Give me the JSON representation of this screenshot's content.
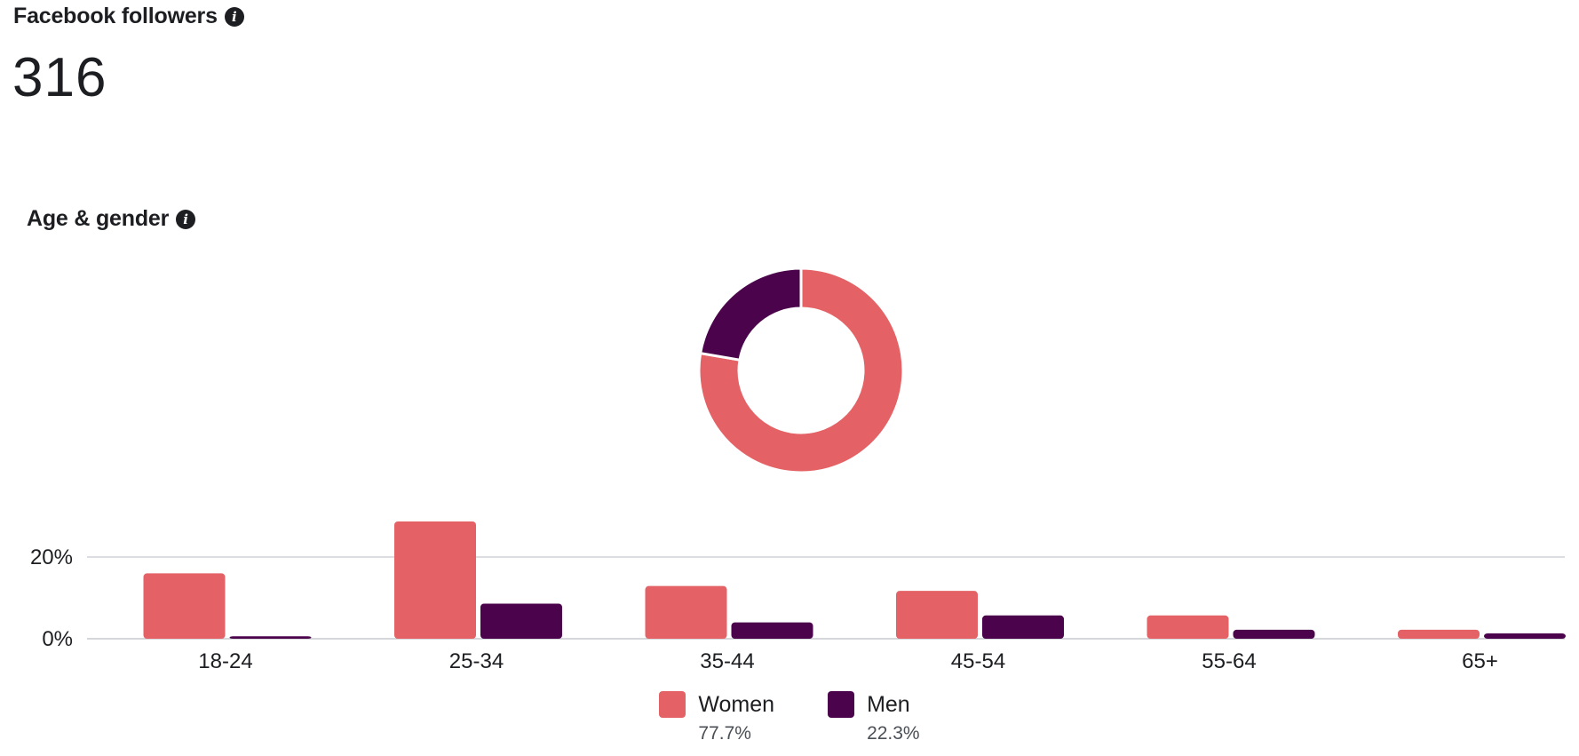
{
  "followers": {
    "title": "Facebook followers",
    "count": "316",
    "info_icon": "info-icon"
  },
  "age_gender": {
    "title": "Age & gender",
    "info_icon": "info-icon"
  },
  "colors": {
    "women": "#e46265",
    "men": "#4b044b",
    "grid": "#d0d3d8",
    "axis": "#c7cacf"
  },
  "chart_data": [
    {
      "type": "pie",
      "variant": "donut",
      "labels": [
        "Women",
        "Men"
      ],
      "values": [
        77.7,
        22.3
      ]
    },
    {
      "type": "bar",
      "categories": [
        "18-24",
        "25-34",
        "35-44",
        "45-54",
        "55-64",
        "65+"
      ],
      "series": [
        {
          "name": "Women",
          "values": [
            16,
            28.7,
            12.9,
            11.7,
            5.7,
            2.2
          ]
        },
        {
          "name": "Men",
          "values": [
            0.6,
            8.6,
            4,
            5.7,
            2.2,
            1.3
          ]
        }
      ],
      "yticks": [
        "0%",
        "20%"
      ],
      "ytick_values": [
        0,
        20
      ],
      "ylim": [
        0,
        30
      ],
      "grid": true,
      "legend": "bottom-center"
    }
  ],
  "legend": [
    {
      "label": "Women",
      "pct": "77.7%"
    },
    {
      "label": "Men",
      "pct": "22.3%"
    }
  ]
}
